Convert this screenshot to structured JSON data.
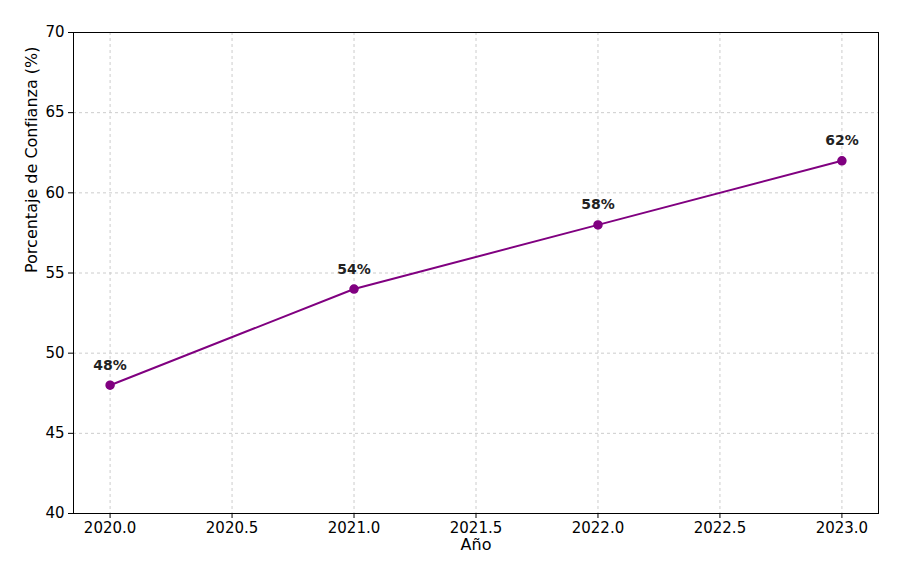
{
  "chart_data": {
    "type": "line",
    "x_label": "Año",
    "y_label": "Porcentaje de Confianza (%)",
    "x": [
      2020,
      2021,
      2022,
      2023
    ],
    "values": [
      48,
      54,
      58,
      62
    ],
    "value_labels": [
      "48%",
      "54%",
      "58%",
      "62%"
    ],
    "color": "#800080",
    "marker": "circle",
    "line_style": "solid",
    "data_labels": true,
    "grid": true,
    "xlim": [
      2019.85,
      2023.15
    ],
    "xticks": [
      {
        "value": 2020,
        "label": "2020.0"
      },
      {
        "value": 2020.5,
        "label": "2020.5"
      },
      {
        "value": 2021,
        "label": "2021.0"
      },
      {
        "value": 2021.5,
        "label": "2021.5"
      },
      {
        "value": 2022,
        "label": "2022.0"
      },
      {
        "value": 2022.5,
        "label": "2022.5"
      },
      {
        "value": 2023,
        "label": "2023.0"
      }
    ],
    "ylim": [
      40,
      70
    ],
    "yticks": [
      40,
      45,
      50,
      55,
      60,
      65,
      70
    ]
  }
}
